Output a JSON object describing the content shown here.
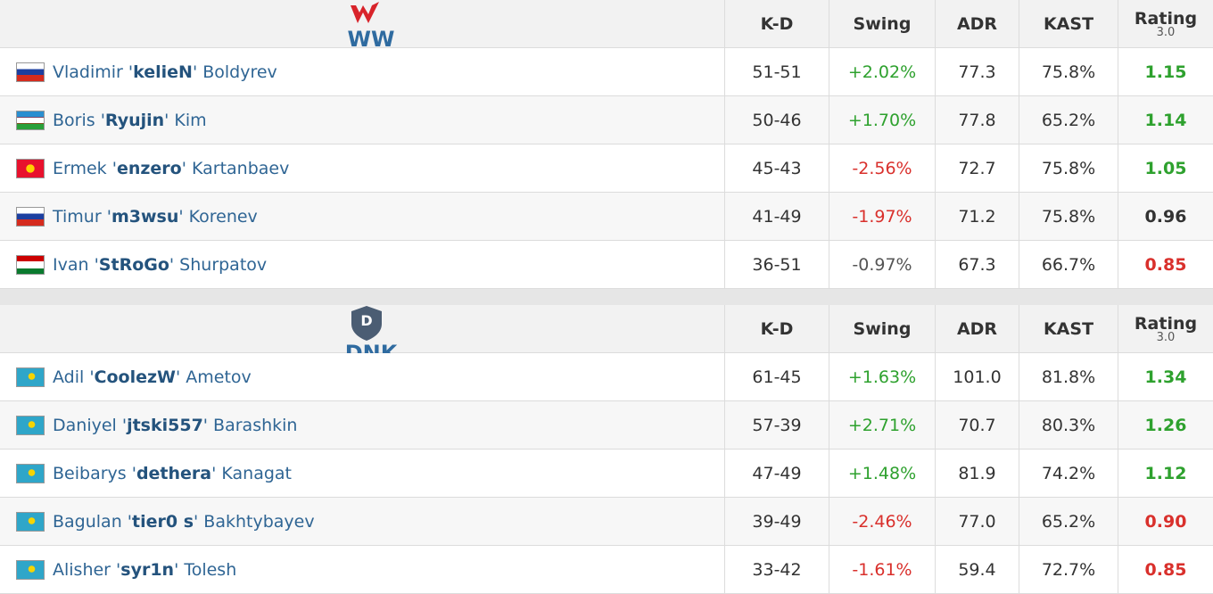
{
  "teams": [
    {
      "name": "WW",
      "columns": [
        "K-D",
        "Swing",
        "ADR",
        "KAST",
        "Rating"
      ],
      "rating_version": "3.0",
      "players": [
        {
          "pre": "Vladimir '",
          "nick": "kelieN",
          "post": "' Boldyrev",
          "kd": "51-51",
          "swing": "+2.02%",
          "swing_color": "#2ea12e",
          "adr": "77.3",
          "kast": "75.8%",
          "rating": "1.15",
          "rating_color": "#2ea12e"
        },
        {
          "pre": "Boris '",
          "nick": "Ryujin",
          "post": "' Kim",
          "kd": "50-46",
          "swing": "+1.70%",
          "swing_color": "#2ea12e",
          "adr": "77.8",
          "kast": "65.2%",
          "rating": "1.14",
          "rating_color": "#2ea12e"
        },
        {
          "pre": "Ermek '",
          "nick": "enzero",
          "post": "' Kartanbaev",
          "kd": "45-43",
          "swing": "-2.56%",
          "swing_color": "#d9302c",
          "adr": "72.7",
          "kast": "75.8%",
          "rating": "1.05",
          "rating_color": "#2ea12e"
        },
        {
          "pre": "Timur '",
          "nick": "m3wsu",
          "post": "' Korenev",
          "kd": "41-49",
          "swing": "-1.97%",
          "swing_color": "#d9302c",
          "adr": "71.2",
          "kast": "75.8%",
          "rating": "0.96",
          "rating_color": "#333333"
        },
        {
          "pre": "Ivan '",
          "nick": "StRoGo",
          "post": "' Shurpatov",
          "kd": "36-51",
          "swing": "-0.97%",
          "swing_color": "#555555",
          "adr": "67.3",
          "kast": "66.7%",
          "rating": "0.85",
          "rating_color": "#d9302c"
        }
      ]
    },
    {
      "name": "DNK",
      "columns": [
        "K-D",
        "Swing",
        "ADR",
        "KAST",
        "Rating"
      ],
      "rating_version": "3.0",
      "players": [
        {
          "pre": "Adil '",
          "nick": "CoolezW",
          "post": "' Ametov",
          "kd": "61-45",
          "swing": "+1.63%",
          "swing_color": "#2ea12e",
          "adr": "101.0",
          "kast": "81.8%",
          "rating": "1.34",
          "rating_color": "#2ea12e"
        },
        {
          "pre": "Daniyel '",
          "nick": "jtski557",
          "post": "' Barashkin",
          "kd": "57-39",
          "swing": "+2.71%",
          "swing_color": "#2ea12e",
          "adr": "70.7",
          "kast": "80.3%",
          "rating": "1.26",
          "rating_color": "#2ea12e"
        },
        {
          "pre": "Beibarys '",
          "nick": "dethera",
          "post": "' Kanagat",
          "kd": "47-49",
          "swing": "+1.48%",
          "swing_color": "#2ea12e",
          "adr": "81.9",
          "kast": "74.2%",
          "rating": "1.12",
          "rating_color": "#2ea12e"
        },
        {
          "pre": "Bagulan '",
          "nick": "tier0 s",
          "post": "' Bakhtybayev",
          "kd": "39-49",
          "swing": "-2.46%",
          "swing_color": "#d9302c",
          "adr": "77.0",
          "kast": "65.2%",
          "rating": "0.90",
          "rating_color": "#d9302c"
        },
        {
          "pre": "Alisher '",
          "nick": "syr1n",
          "post": "' Tolesh",
          "kd": "33-42",
          "swing": "-1.61%",
          "swing_color": "#d9302c",
          "adr": "59.4",
          "kast": "72.7%",
          "rating": "0.85",
          "rating_color": "#d9302c"
        }
      ]
    }
  ]
}
